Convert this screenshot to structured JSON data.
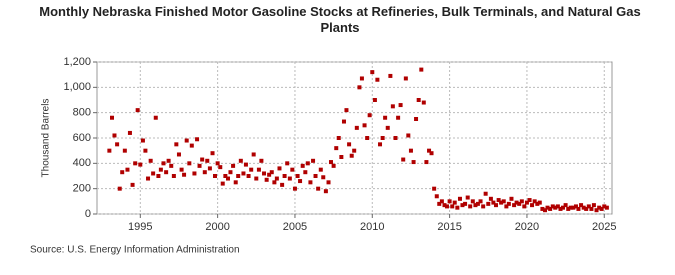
{
  "chart_data": {
    "type": "scatter",
    "title": "Monthly Nebraska Finished Motor Gasoline Stocks at Refineries, Bulk Terminals, and Natural Gas Plants",
    "y_label": "Thousand Barrels",
    "source": "Source: U.S. Energy Information Administration",
    "color": "#b00000",
    "grid": true,
    "xlim": [
      1992.2,
      2025.5
    ],
    "xticks": [
      1995,
      2000,
      2005,
      2010,
      2015,
      2020,
      2025
    ],
    "ylim": [
      0,
      1200
    ],
    "yticks": [
      0,
      200,
      400,
      600,
      800,
      {
        "value": 1000,
        "label": "1,000"
      },
      {
        "value": 1200,
        "label": "1,200"
      }
    ],
    "x": [
      1993,
      1993.17,
      1993.33,
      1993.5,
      1993.67,
      1993.83,
      1994,
      1994.17,
      1994.33,
      1994.5,
      1994.67,
      1994.83,
      1995,
      1995.17,
      1995.33,
      1995.5,
      1995.67,
      1995.83,
      1996,
      1996.17,
      1996.33,
      1996.5,
      1996.67,
      1996.83,
      1997,
      1997.17,
      1997.33,
      1997.5,
      1997.67,
      1997.83,
      1998,
      1998.17,
      1998.33,
      1998.5,
      1998.67,
      1998.83,
      1999,
      1999.17,
      1999.33,
      1999.5,
      1999.67,
      1999.83,
      2000,
      2000.17,
      2000.33,
      2000.5,
      2000.67,
      2000.83,
      2001,
      2001.17,
      2001.33,
      2001.5,
      2001.67,
      2001.83,
      2002,
      2002.17,
      2002.33,
      2002.5,
      2002.67,
      2002.83,
      2003,
      2003.17,
      2003.33,
      2003.5,
      2003.67,
      2003.83,
      2004,
      2004.17,
      2004.33,
      2004.5,
      2004.67,
      2004.83,
      2005,
      2005.17,
      2005.33,
      2005.5,
      2005.67,
      2005.83,
      2006,
      2006.17,
      2006.33,
      2006.5,
      2006.67,
      2006.83,
      2007,
      2007.17,
      2007.33,
      2007.5,
      2007.67,
      2007.83,
      2008,
      2008.17,
      2008.33,
      2008.5,
      2008.67,
      2008.83,
      2009,
      2009.17,
      2009.33,
      2009.5,
      2009.67,
      2009.83,
      2010,
      2010.17,
      2010.33,
      2010.5,
      2010.67,
      2010.83,
      2011,
      2011.17,
      2011.33,
      2011.5,
      2011.67,
      2011.83,
      2012,
      2012.17,
      2012.33,
      2012.5,
      2012.67,
      2012.83,
      2013,
      2013.17,
      2013.33,
      2013.5,
      2013.67,
      2013.83,
      2014,
      2014.17,
      2014.33,
      2014.5,
      2014.67,
      2014.83,
      2015,
      2015.17,
      2015.33,
      2015.5,
      2015.67,
      2015.83,
      2016,
      2016.17,
      2016.33,
      2016.5,
      2016.67,
      2016.83,
      2017,
      2017.17,
      2017.33,
      2017.5,
      2017.67,
      2017.83,
      2018,
      2018.17,
      2018.33,
      2018.5,
      2018.67,
      2018.83,
      2019,
      2019.17,
      2019.33,
      2019.5,
      2019.67,
      2019.83,
      2020,
      2020.17,
      2020.33,
      2020.5,
      2020.67,
      2020.83,
      2021,
      2021.17,
      2021.33,
      2021.5,
      2021.67,
      2021.83,
      2022,
      2022.17,
      2022.33,
      2022.5,
      2022.67,
      2022.83,
      2023,
      2023.17,
      2023.33,
      2023.5,
      2023.67,
      2023.83,
      2024,
      2024.17,
      2024.33,
      2024.5,
      2024.67,
      2024.83,
      2025,
      2025.17
    ],
    "values": [
      500,
      760,
      620,
      550,
      200,
      330,
      500,
      350,
      640,
      230,
      400,
      820,
      390,
      580,
      500,
      280,
      420,
      320,
      760,
      300,
      350,
      400,
      330,
      420,
      380,
      300,
      550,
      470,
      350,
      310,
      580,
      400,
      540,
      320,
      590,
      380,
      430,
      330,
      420,
      360,
      480,
      300,
      400,
      370,
      240,
      300,
      280,
      330,
      380,
      250,
      300,
      420,
      320,
      390,
      300,
      350,
      470,
      280,
      350,
      420,
      320,
      270,
      310,
      330,
      250,
      280,
      360,
      230,
      300,
      400,
      280,
      350,
      200,
      300,
      260,
      380,
      330,
      400,
      250,
      420,
      300,
      200,
      350,
      290,
      180,
      250,
      410,
      380,
      520,
      600,
      450,
      730,
      820,
      550,
      460,
      500,
      680,
      1000,
      1070,
      700,
      600,
      780,
      1120,
      900,
      1060,
      550,
      600,
      760,
      680,
      1090,
      850,
      600,
      760,
      860,
      430,
      1070,
      620,
      500,
      410,
      750,
      900,
      1140,
      880,
      410,
      500,
      480,
      200,
      140,
      80,
      100,
      70,
      60,
      100,
      60,
      90,
      50,
      120,
      70,
      80,
      130,
      60,
      100,
      70,
      80,
      100,
      60,
      160,
      80,
      120,
      90,
      70,
      110,
      90,
      100,
      60,
      80,
      120,
      70,
      90,
      80,
      100,
      60,
      90,
      110,
      70,
      100,
      80,
      90,
      40,
      30,
      50,
      40,
      60,
      50,
      60,
      40,
      50,
      70,
      40,
      50,
      50,
      60,
      40,
      70,
      50,
      40,
      60,
      40,
      70,
      30,
      50,
      40,
      60,
      50
    ]
  }
}
